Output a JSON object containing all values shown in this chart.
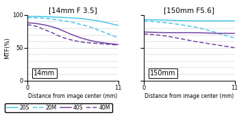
{
  "title_left": "[14mm F 3.5]",
  "title_right": "[150mm F5.6]",
  "xlabel": "Distance from image center (mm)",
  "ylabel": "MTF(%)",
  "xlim": [
    0,
    11
  ],
  "ylim": [
    0,
    100
  ],
  "yticks": [
    0,
    50,
    100
  ],
  "xticks": [
    0,
    11
  ],
  "label_left": "14mm",
  "label_right": "150mm",
  "color_20": "#44c8e8",
  "color_40": "#7040a0",
  "left_s20_pts": [
    [
      0,
      98
    ],
    [
      3,
      97
    ],
    [
      6,
      95
    ],
    [
      8,
      92
    ],
    [
      9,
      90
    ],
    [
      10,
      87
    ],
    [
      11,
      84
    ]
  ],
  "left_m20_pts": [
    [
      0,
      96
    ],
    [
      2,
      95
    ],
    [
      4,
      92
    ],
    [
      6,
      87
    ],
    [
      7.5,
      82
    ],
    [
      9,
      75
    ],
    [
      10,
      70
    ],
    [
      11,
      65
    ]
  ],
  "left_s40_pts": [
    [
      0,
      88
    ],
    [
      1,
      87
    ],
    [
      2,
      85
    ],
    [
      3.5,
      80
    ],
    [
      5,
      72
    ],
    [
      6.5,
      65
    ],
    [
      8,
      60
    ],
    [
      9.5,
      57
    ],
    [
      11,
      55
    ]
  ],
  "left_m40_pts": [
    [
      0,
      85
    ],
    [
      1,
      83
    ],
    [
      2,
      78
    ],
    [
      3,
      73
    ],
    [
      4,
      67
    ],
    [
      5,
      63
    ],
    [
      6,
      60
    ],
    [
      7,
      58
    ],
    [
      8,
      57
    ],
    [
      9,
      56
    ],
    [
      10,
      55
    ],
    [
      11,
      54
    ]
  ],
  "right_s20_pts": [
    [
      0,
      93
    ],
    [
      3,
      92
    ],
    [
      6,
      91
    ],
    [
      9,
      91
    ],
    [
      11,
      91
    ]
  ],
  "right_m20_pts": [
    [
      0,
      91
    ],
    [
      2,
      89
    ],
    [
      4,
      86
    ],
    [
      6,
      82
    ],
    [
      8,
      76
    ],
    [
      9.5,
      70
    ],
    [
      11,
      65
    ]
  ],
  "right_s40_pts": [
    [
      0,
      74
    ],
    [
      3,
      73
    ],
    [
      6,
      73
    ],
    [
      9,
      72
    ],
    [
      11,
      72
    ]
  ],
  "right_m40_pts": [
    [
      0,
      71
    ],
    [
      2,
      69
    ],
    [
      4,
      65
    ],
    [
      6,
      60
    ],
    [
      8,
      56
    ],
    [
      10,
      52
    ],
    [
      11,
      50
    ]
  ]
}
